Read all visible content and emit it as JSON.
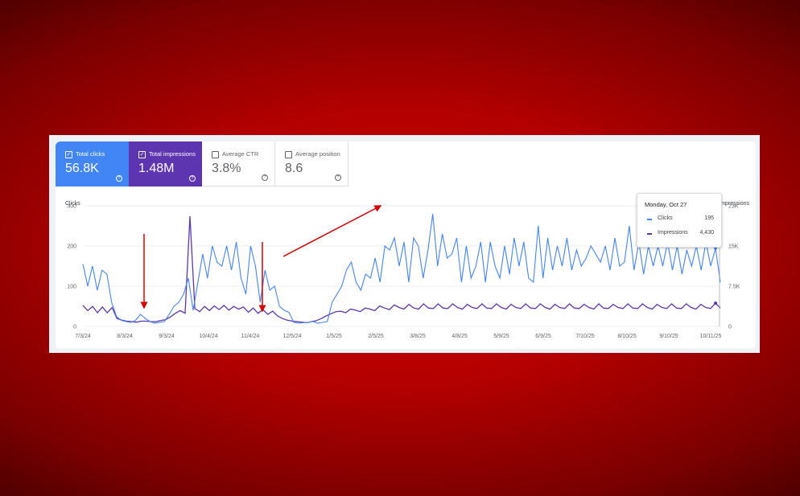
{
  "metrics": [
    {
      "label": "Total clicks",
      "value": "56.8K",
      "checked": true,
      "color": "#4285f4"
    },
    {
      "label": "Total impressions",
      "value": "1.48M",
      "checked": true,
      "color": "#5e35b1"
    },
    {
      "label": "Average CTR",
      "value": "3.8%",
      "checked": false,
      "color": "#ffffff"
    },
    {
      "label": "Average position",
      "value": "8.6",
      "checked": false,
      "color": "#ffffff"
    }
  ],
  "tooltip": {
    "date": "Monday, Oct 27",
    "rows": [
      {
        "name": "Clicks",
        "value": "195",
        "color": "#4285f4"
      },
      {
        "name": "Impressions",
        "value": "4,430",
        "color": "#5e35b1"
      }
    ]
  },
  "chart_data": {
    "type": "line",
    "left_axis_label": "Clicks",
    "right_axis_label": "Impressions",
    "left_ticks": [
      "300",
      "200",
      "100",
      "0"
    ],
    "right_ticks": [
      "23K",
      "15K",
      "7.5K",
      "0"
    ],
    "left_ylim": [
      0,
      300
    ],
    "right_ylim": [
      0,
      23000
    ],
    "x_tick_labels": [
      "7/3/24",
      "8/3/24",
      "9/3/24",
      "10/4/24",
      "11/4/24",
      "12/5/24",
      "1/5/25",
      "2/5/25",
      "3/8/25",
      "4/8/25",
      "5/9/25",
      "6/9/25",
      "7/10/25",
      "8/10/25",
      "9/10/25",
      "10/11/25"
    ],
    "series": [
      {
        "name": "Clicks",
        "color": "#4285f4",
        "axis": "left",
        "values": [
          155,
          100,
          150,
          90,
          140,
          130,
          60,
          25,
          15,
          12,
          10,
          15,
          30,
          20,
          12,
          8,
          10,
          12,
          30,
          50,
          60,
          80,
          120,
          40,
          110,
          180,
          120,
          200,
          160,
          150,
          200,
          140,
          210,
          120,
          80,
          200,
          150,
          60,
          140,
          90,
          100,
          50,
          40,
          35,
          10,
          8,
          9,
          10,
          12,
          8,
          10,
          12,
          60,
          80,
          100,
          140,
          160,
          110,
          90,
          130,
          120,
          170,
          110,
          200,
          190,
          220,
          150,
          210,
          110,
          220,
          200,
          120,
          190,
          280,
          150,
          230,
          170,
          180,
          220,
          110,
          200,
          120,
          150,
          210,
          110,
          210,
          150,
          120,
          200,
          130,
          220,
          150,
          210,
          120,
          110,
          250,
          120,
          220,
          140,
          200,
          150,
          220,
          140,
          190,
          150,
          170,
          200,
          180,
          160,
          200,
          140,
          220,
          150,
          160,
          250,
          140,
          210,
          130,
          200,
          150,
          200,
          150,
          210,
          140,
          200,
          130,
          190,
          150,
          200,
          140,
          210,
          150,
          195,
          110
        ]
      },
      {
        "name": "Impressions",
        "color": "#5e35b1",
        "axis": "right",
        "values": [
          4000,
          3000,
          3800,
          2600,
          3700,
          2600,
          3600,
          1500,
          1200,
          1000,
          900,
          800,
          1000,
          1000,
          900,
          900,
          1100,
          1300,
          1800,
          2500,
          3000,
          2500,
          21000,
          3400,
          2800,
          3800,
          3000,
          3900,
          3200,
          4000,
          3100,
          3800,
          3300,
          3700,
          2700,
          3500,
          2500,
          3200,
          2300,
          2900,
          2000,
          1500,
          1200,
          1000,
          900,
          800,
          700,
          900,
          1100,
          1500,
          2000,
          2400,
          2800,
          2900,
          2600,
          3300,
          3100,
          2800,
          3500,
          3300,
          3000,
          3900,
          3500,
          3200,
          4100,
          3600,
          3300,
          4200,
          3500,
          3300,
          4300,
          3500,
          3400,
          4300,
          3500,
          3400,
          4300,
          3600,
          3300,
          4200,
          3600,
          3400,
          4300,
          3500,
          3400,
          4300,
          3600,
          3300,
          4200,
          3600,
          3400,
          4300,
          3500,
          3400,
          4300,
          3600,
          3300,
          4200,
          3600,
          3400,
          4300,
          3500,
          3400,
          4200,
          3600,
          3300,
          4300,
          3500,
          3400,
          4200,
          3600,
          3400,
          4300,
          3500,
          3400,
          4300,
          3600,
          3300,
          4200,
          3600,
          3400,
          4300,
          3500,
          3400,
          4300,
          3600,
          3300,
          4200,
          3600,
          3400,
          4430,
          3500
        ]
      }
    ],
    "annotations": [
      "red arrow pointing down near 8/3/24",
      "red arrow pointing down near 11/4/24",
      "red arrow pointing up-right after 12/5/24"
    ]
  }
}
